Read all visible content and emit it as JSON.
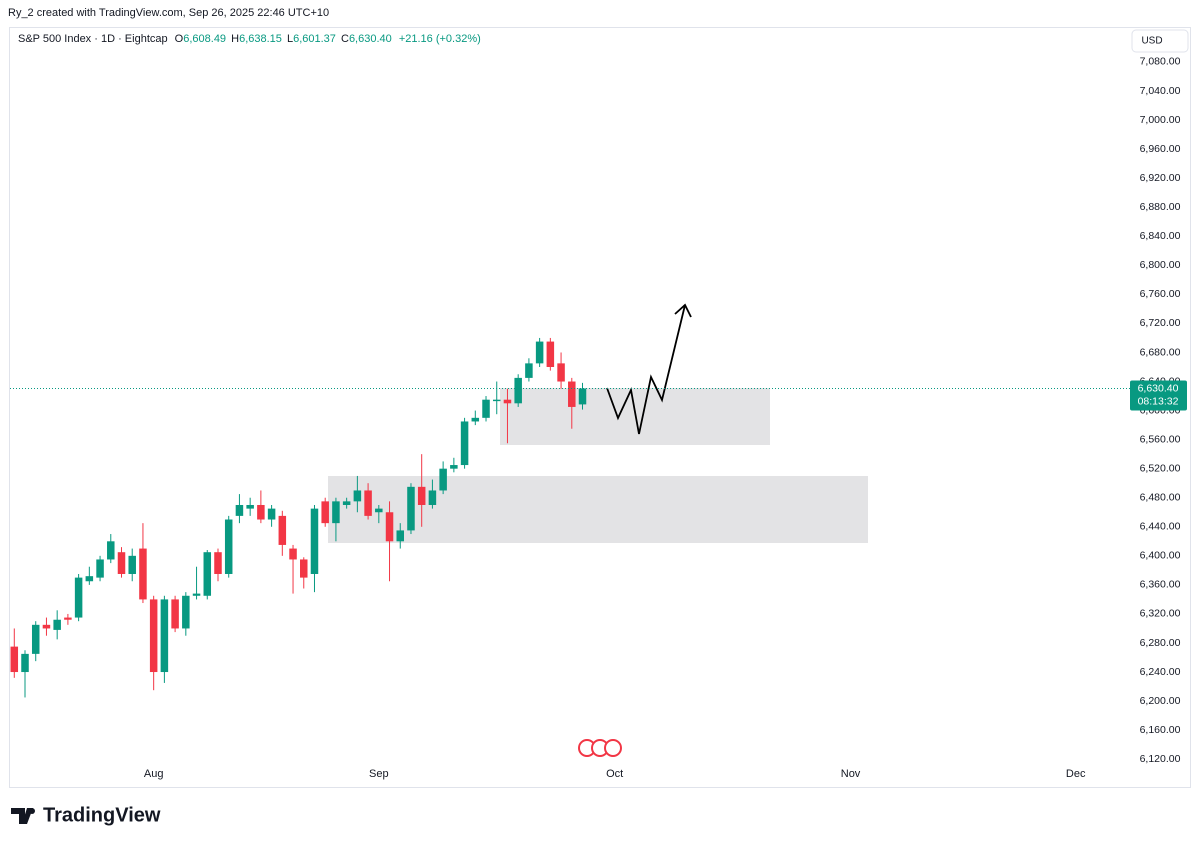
{
  "chart_data": {
    "type": "candlestick",
    "watermark": "Ry_2 created with TradingView.com, Sep 26, 2025 22:46 UTC+10",
    "legend": {
      "symbol": "S&P 500 Index · 1D · Eightcap",
      "open_label": "O",
      "open": "6,608.49",
      "high_label": "H",
      "high": "6,638.15",
      "low_label": "L",
      "low": "6,601.37",
      "close_label": "C",
      "close": "6,630.40",
      "change": "+21.16 (+0.32%)"
    },
    "currency": "USD",
    "up_color": "#089981",
    "down_color": "#f23645",
    "open": [
      6275,
      6240,
      6265,
      6305,
      6298,
      6315,
      6315,
      6365,
      6370,
      6395,
      6405,
      6375,
      6410,
      6340,
      6240,
      6340,
      6300,
      6345,
      6345,
      6405,
      6375,
      6455,
      6465,
      6470,
      6450,
      6455,
      6410,
      6395,
      6375,
      6475,
      6445,
      6470,
      6475,
      6490,
      6460,
      6460,
      6420,
      6435,
      6495,
      6470,
      6490,
      6520,
      6525,
      6585,
      6590,
      6613,
      6615,
      6610,
      6645,
      6665,
      6695,
      6665,
      6640,
      6608.49
    ],
    "high": [
      6300,
      6270,
      6310,
      6315,
      6325,
      6320,
      6375,
      6385,
      6400,
      6430,
      6412,
      6410,
      6445,
      6345,
      6345,
      6345,
      6350,
      6385,
      6408,
      6410,
      6455,
      6485,
      6480,
      6490,
      6470,
      6462,
      6415,
      6398,
      6470,
      6480,
      6480,
      6480,
      6510,
      6500,
      6470,
      6475,
      6445,
      6500,
      6540,
      6505,
      6530,
      6535,
      6590,
      6600,
      6620,
      6640,
      6630,
      6650,
      6672,
      6700,
      6700,
      6680,
      6645,
      6638.15
    ],
    "low": [
      6232,
      6205,
      6255,
      6290,
      6285,
      6305,
      6310,
      6360,
      6365,
      6390,
      6370,
      6365,
      6335,
      6215,
      6225,
      6295,
      6290,
      6340,
      6340,
      6365,
      6370,
      6445,
      6455,
      6445,
      6440,
      6400,
      6348,
      6355,
      6350,
      6440,
      6420,
      6465,
      6460,
      6450,
      6445,
      6365,
      6410,
      6430,
      6440,
      6465,
      6485,
      6515,
      6520,
      6580,
      6585,
      6595,
      6555,
      6605,
      6640,
      6660,
      6655,
      6630,
      6575,
      6601.37
    ],
    "close": [
      6240,
      6265,
      6305,
      6300,
      6312,
      6312,
      6370,
      6372,
      6395,
      6420,
      6375,
      6400,
      6340,
      6240,
      6340,
      6300,
      6345,
      6348,
      6405,
      6375,
      6450,
      6470,
      6470,
      6450,
      6465,
      6415,
      6395,
      6370,
      6465,
      6445,
      6475,
      6475,
      6490,
      6455,
      6465,
      6420,
      6435,
      6495,
      6470,
      6490,
      6520,
      6525,
      6585,
      6590,
      6615,
      6615,
      6610,
      6645,
      6665,
      6695,
      6660,
      6640,
      6605,
      6630.4
    ],
    "xlim": [
      -0.4,
      103.6
    ],
    "xticks": [
      {
        "value": 13,
        "label": "Aug"
      },
      {
        "value": 34,
        "label": "Sep"
      },
      {
        "value": 56,
        "label": "Oct"
      },
      {
        "value": 78,
        "label": "Nov"
      },
      {
        "value": 99,
        "label": "Dec"
      }
    ],
    "ylim": [
      6112,
      7124
    ],
    "yticks": [
      {
        "value": 6120,
        "label": "6,120.00"
      },
      {
        "value": 6160,
        "label": "6,160.00"
      },
      {
        "value": 6200,
        "label": "6,200.00"
      },
      {
        "value": 6240,
        "label": "6,240.00"
      },
      {
        "value": 6280,
        "label": "6,280.00"
      },
      {
        "value": 6320,
        "label": "6,320.00"
      },
      {
        "value": 6360,
        "label": "6,360.00"
      },
      {
        "value": 6400,
        "label": "6,400.00"
      },
      {
        "value": 6440,
        "label": "6,440.00"
      },
      {
        "value": 6480,
        "label": "6,480.00"
      },
      {
        "value": 6520,
        "label": "6,520.00"
      },
      {
        "value": 6560,
        "label": "6,560.00"
      },
      {
        "value": 6600,
        "label": "6,600.00"
      },
      {
        "value": 6640,
        "label": "6,640.00"
      },
      {
        "value": 6680,
        "label": "6,680.00"
      },
      {
        "value": 6720,
        "label": "6,720.00"
      },
      {
        "value": 6760,
        "label": "6,760.00"
      },
      {
        "value": 6800,
        "label": "6,800.00"
      },
      {
        "value": 6840,
        "label": "6,840.00"
      },
      {
        "value": 6880,
        "label": "6,880.00"
      },
      {
        "value": 6920,
        "label": "6,920.00"
      },
      {
        "value": 6960,
        "label": "6,960.00"
      },
      {
        "value": 7000,
        "label": "7,000.00"
      },
      {
        "value": 7040,
        "label": "7,040.00"
      },
      {
        "value": 7080,
        "label": "7,080.00"
      }
    ],
    "grid": false,
    "last_price": {
      "value": 6630.4,
      "label": "6,630.40"
    },
    "countdown": "08:13:32",
    "brand": "TradingView"
  }
}
